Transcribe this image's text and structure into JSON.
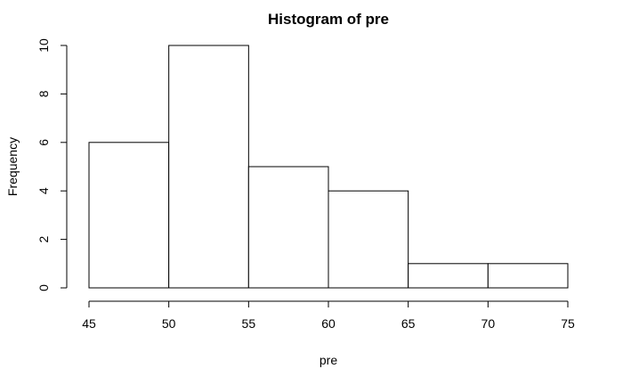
{
  "chart_data": {
    "type": "bar",
    "title": "Histogram of pre",
    "xlabel": "pre",
    "ylabel": "Frequency",
    "bins": [
      {
        "from": 45,
        "to": 50,
        "count": 6
      },
      {
        "from": 50,
        "to": 55,
        "count": 10
      },
      {
        "from": 55,
        "to": 60,
        "count": 5
      },
      {
        "from": 60,
        "to": 65,
        "count": 4
      },
      {
        "from": 65,
        "to": 70,
        "count": 1
      },
      {
        "from": 70,
        "to": 75,
        "count": 1
      }
    ],
    "xlim": [
      45,
      75
    ],
    "ylim": [
      0,
      10
    ],
    "x_ticks": [
      45,
      50,
      55,
      60,
      65,
      70,
      75
    ],
    "y_ticks": [
      0,
      2,
      4,
      6,
      8,
      10
    ],
    "grid": false,
    "bar_fill": "#ffffff",
    "bar_stroke": "#000000"
  }
}
